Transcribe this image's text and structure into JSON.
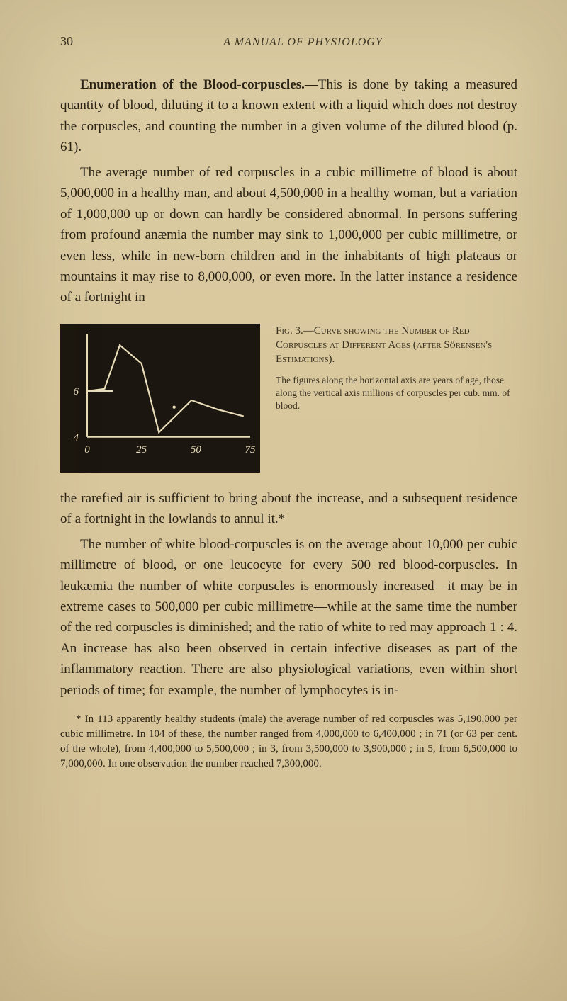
{
  "page": {
    "number": "30",
    "running_title": "A MANUAL OF PHYSIOLOGY"
  },
  "para1": {
    "lead": "Enumeration of the Blood-corpuscles.",
    "rest": "—This is done by taking a measured quantity of blood, diluting it to a known extent with a liquid which does not destroy the corpuscles, and counting the number in a given volume of the diluted blood (p. 61)."
  },
  "para2": "The average number of red corpuscles in a cubic milli­metre of blood is about 5,000,000 in a healthy man, and about 4,500,000 in a healthy woman, but a variation of 1,000,000 up or down can hardly be considered abnormal. In persons suffering from profound anæmia the number may sink to 1,000,000 per cubic millimetre, or even less, while in new-born children and in the inhabitants of high plateaus or mountains it may rise to 8,000,000, or even more. In the latter instance a residence of a fortnight in",
  "figure": {
    "type": "line",
    "background_color": "#1b160f",
    "line_color": "#e9ddb9",
    "axis_color": "#e9ddb9",
    "label_color": "#e9ddb9",
    "label_fontsize": 15,
    "x_ticks": [
      "0",
      "25",
      "50",
      "75"
    ],
    "y_ticks": [
      "4",
      "6"
    ],
    "xlim": [
      0,
      75
    ],
    "ylim": [
      3.5,
      8.5
    ],
    "points": [
      {
        "x": 0,
        "y": 6.0
      },
      {
        "x": 8,
        "y": 6.1
      },
      {
        "x": 15,
        "y": 8.0
      },
      {
        "x": 25,
        "y": 7.2
      },
      {
        "x": 33,
        "y": 4.2
      },
      {
        "x": 48,
        "y": 5.6
      },
      {
        "x": 60,
        "y": 5.2
      },
      {
        "x": 72,
        "y": 4.9
      }
    ],
    "caption_title": "Fig. 3.—Curve showing the Number of Red Corpuscles at Different Ages (after Sörensen's Estimations).",
    "caption_note": "The figures along the horizontal axis are years of age, those along the vertical axis millions of corpuscles per cub. mm. of blood."
  },
  "para3": "the rarefied air is sufficient to bring about the increase, and a subsequent residence of a fortnight in the lowlands to annul it.*",
  "para4": "The number of white blood-corpuscles is on the average about 10,000 per cubic millimetre of blood, or one leucocyte for every 500 red blood-corpuscles. In leukæmia the number of white corpuscles is enormously increased—it may be in extreme cases to 500,000 per cubic millimetre—while at the same time the number of the red corpuscles is diminished; and the ratio of white to red may approach 1 : 4. An increase has also been observed in certain infec­tive diseases as part of the inflammatory reaction. There are also physiological variations, even within short periods of time; for example, the number of lymphocytes is in-",
  "footnote": "* In 113 apparently healthy students (male) the average number of red corpuscles was 5,190,000 per cubic millimetre. In 104 of these, the number ranged from 4,000,000 to 6,400,000 ; in 71 (or 63 per cent. of the whole), from 4,400,000 to 5,500,000 ; in 3, from 3,500,000 to 3,900,000 ; in 5, from 6,500,000 to 7,000,000. In one observation the number reached 7,300,000."
}
